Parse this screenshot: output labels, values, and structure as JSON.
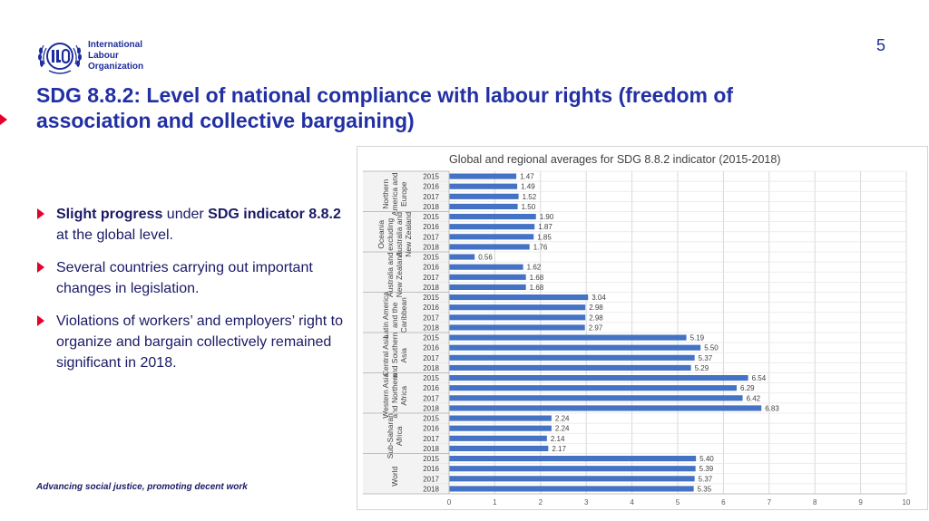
{
  "logo": {
    "line1": "International",
    "line2": "Labour",
    "line3": "Organization"
  },
  "page_number": "5",
  "title": "SDG 8.8.2: Level of national compliance with labour rights (freedom of association and collective bargaining)",
  "bullets": [
    {
      "parts": [
        {
          "text": "Slight progress",
          "bold": true
        },
        {
          "text": " under ",
          "bold": false
        },
        {
          "text": "SDG indicator 8.8.2",
          "bold": true
        },
        {
          "text": " at the global level.",
          "bold": false
        }
      ]
    },
    {
      "parts": [
        {
          "text": " Several countries carrying out important changes in legislation.",
          "bold": false
        }
      ]
    },
    {
      "parts": [
        {
          "text": "Violations of workers’ and employers’ right to organize and bargain collectively remained significant in 2018.",
          "bold": false
        }
      ]
    }
  ],
  "footer": "Advancing social justice, promoting decent work",
  "colors": {
    "accent": "#e4002b",
    "title_blue": "#2230a3",
    "bar": "#4472c4"
  },
  "chart_data": {
    "type": "bar",
    "orientation": "horizontal",
    "title": "Global and regional averages for SDG 8.8.2 indicator (2015-2018)",
    "years": [
      "2015",
      "2016",
      "2017",
      "2018"
    ],
    "groups": [
      {
        "name": "Northern America and Europe",
        "lines": [
          "Northern",
          "America and",
          "Europe"
        ],
        "values": [
          1.47,
          1.49,
          1.52,
          1.5
        ]
      },
      {
        "name": "Oceania excluding Australia and New Zealand",
        "lines": [
          "Oceania",
          "excluding",
          "Australia and",
          "New Zealand"
        ],
        "values": [
          1.9,
          1.87,
          1.85,
          1.76
        ]
      },
      {
        "name": "Australia and New Zealand",
        "lines": [
          "Australia and",
          "New Zealand"
        ],
        "values": [
          0.56,
          1.62,
          1.68,
          1.68
        ]
      },
      {
        "name": "Latin America and the Caribbean",
        "lines": [
          "Latin America",
          "and the",
          "Caribbean"
        ],
        "values": [
          3.04,
          2.98,
          2.98,
          2.97
        ]
      },
      {
        "name": "Central Asia and Southern Asia",
        "lines": [
          "Central Asia",
          "and Southern",
          "Asia"
        ],
        "values": [
          5.19,
          5.5,
          5.37,
          5.29
        ]
      },
      {
        "name": "Western Asia and Northern Africa",
        "lines": [
          "Western Asia",
          "and Northern",
          "Africa"
        ],
        "values": [
          6.54,
          6.29,
          6.42,
          6.83
        ]
      },
      {
        "name": "Sub-Saharan Africa",
        "lines": [
          "Sub-Saharan",
          "Africa"
        ],
        "values": [
          2.24,
          2.24,
          2.14,
          2.17
        ]
      },
      {
        "name": "World",
        "lines": [
          "World"
        ],
        "values": [
          5.4,
          5.39,
          5.37,
          5.35
        ]
      }
    ],
    "x_ticks": [
      0,
      1,
      2,
      3,
      4,
      5,
      6,
      7,
      8,
      9,
      10
    ],
    "xlim": [
      0,
      10
    ],
    "grid": true,
    "legend": "none"
  }
}
